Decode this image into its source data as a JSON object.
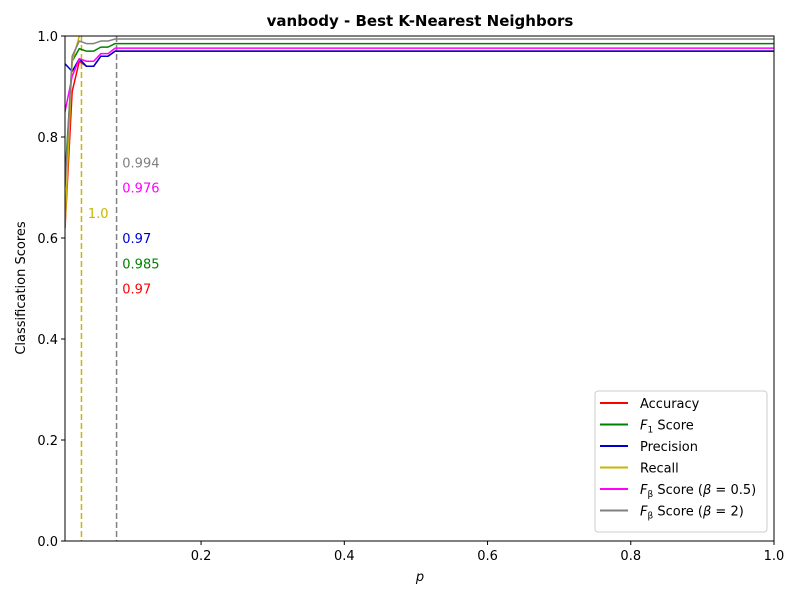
{
  "chart_data": {
    "type": "line",
    "title": "vanbody - Best K-Nearest Neighbors",
    "xlabel": "p",
    "ylabel": "Classification Scores",
    "xlim": [
      0.01,
      1.0
    ],
    "ylim": [
      0.0,
      1.0
    ],
    "xticks": [
      0.2,
      0.4,
      0.6,
      0.8,
      1.0
    ],
    "xtick_labels": [
      "0.2",
      "0.4",
      "0.6",
      "0.8",
      "1.0"
    ],
    "yticks": [
      0.0,
      0.2,
      0.4,
      0.6,
      0.8,
      1.0
    ],
    "ytick_labels": [
      "0.0",
      "0.2",
      "0.4",
      "0.6",
      "0.8",
      "1.0"
    ],
    "grid": false,
    "legend_position": "lower-right",
    "series": [
      {
        "name": "Accuracy",
        "legend_label": [
          "Accuracy"
        ],
        "color": "#ff0000",
        "x": [
          0.01,
          0.02,
          0.03,
          0.04,
          0.05,
          0.06,
          0.07,
          0.08,
          0.09,
          1.0
        ],
        "y": [
          0.62,
          0.89,
          0.95,
          0.94,
          0.94,
          0.96,
          0.96,
          0.97,
          0.97,
          0.97
        ]
      },
      {
        "name": "F1 Score",
        "legend_label": [
          "F",
          "1",
          " Score"
        ],
        "color": "#008000",
        "x": [
          0.01,
          0.02,
          0.03,
          0.04,
          0.05,
          0.06,
          0.07,
          0.08,
          0.09,
          1.0
        ],
        "y": [
          0.72,
          0.95,
          0.975,
          0.97,
          0.97,
          0.978,
          0.978,
          0.985,
          0.985,
          0.985
        ]
      },
      {
        "name": "Precision",
        "legend_label": [
          "Precision"
        ],
        "color": "#0000cc",
        "x": [
          0.01,
          0.02,
          0.03,
          0.04,
          0.05,
          0.06,
          0.07,
          0.08,
          0.09,
          1.0
        ],
        "y": [
          0.945,
          0.93,
          0.955,
          0.94,
          0.94,
          0.96,
          0.96,
          0.97,
          0.97,
          0.97
        ]
      },
      {
        "name": "Recall",
        "legend_label": [
          "Recall"
        ],
        "color": "#ccb400",
        "x": [
          0.01,
          0.02,
          0.03
        ],
        "y": [
          0.62,
          0.95,
          1.0
        ]
      },
      {
        "name": "Fβ Score (β=0.5)",
        "legend_label": [
          "F",
          "β",
          " Score (",
          "β",
          " = 0.5)"
        ],
        "color": "#ff00ff",
        "x": [
          0.01,
          0.02,
          0.03,
          0.04,
          0.05,
          0.06,
          0.07,
          0.08,
          0.09,
          1.0
        ],
        "y": [
          0.85,
          0.92,
          0.955,
          0.95,
          0.95,
          0.965,
          0.965,
          0.976,
          0.976,
          0.976
        ]
      },
      {
        "name": "Fβ Score (β=2)",
        "legend_label": [
          "F",
          "β",
          " Score (",
          "β",
          " = 2)"
        ],
        "color": "#808080",
        "x": [
          0.01,
          0.02,
          0.03,
          0.04,
          0.05,
          0.06,
          0.07,
          0.08,
          0.09,
          1.0
        ],
        "y": [
          0.7,
          0.96,
          0.99,
          0.985,
          0.985,
          0.99,
          0.99,
          0.994,
          0.994,
          0.994
        ]
      }
    ],
    "vlines": [
      {
        "x": 0.033,
        "color": "#ccb400"
      },
      {
        "x": 0.082,
        "color": "#808080"
      }
    ],
    "annotations": [
      {
        "text": "1.0",
        "x": 0.042,
        "y": 0.65,
        "color": "#ccb400"
      },
      {
        "text": "0.994",
        "x": 0.09,
        "y": 0.75,
        "color": "#808080"
      },
      {
        "text": "0.976",
        "x": 0.09,
        "y": 0.7,
        "color": "#ff00ff"
      },
      {
        "text": "0.97",
        "x": 0.09,
        "y": 0.6,
        "color": "#0000cc"
      },
      {
        "text": "0.985",
        "x": 0.09,
        "y": 0.55,
        "color": "#008000"
      },
      {
        "text": "0.97",
        "x": 0.09,
        "y": 0.5,
        "color": "#ff0000"
      }
    ]
  }
}
